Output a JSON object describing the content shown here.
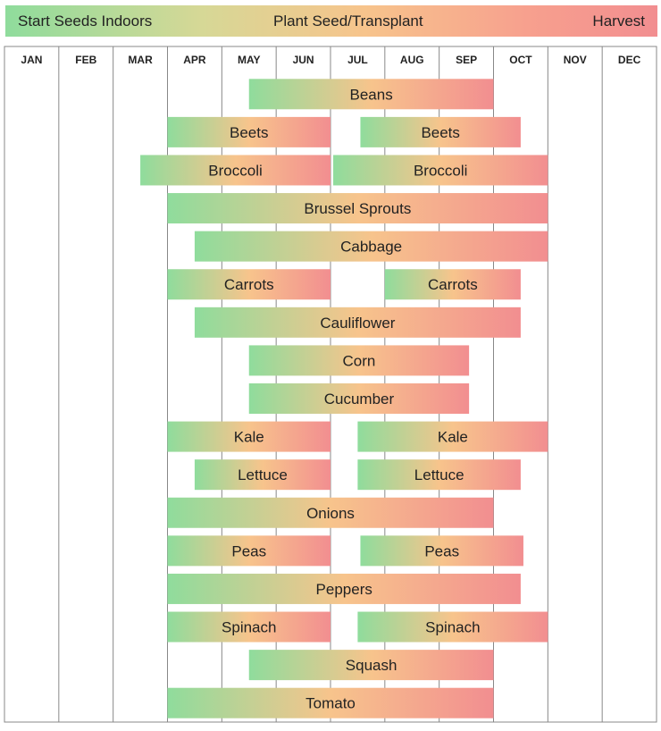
{
  "legend": {
    "start_label": "Start Seeds Indoors",
    "plant_label": "Plant Seed/Transplant",
    "harvest_label": "Harvest"
  },
  "colors": {
    "start": "#8fdc9c",
    "plant": "#f7c48c",
    "harvest": "#f28e90",
    "grid": "#888888"
  },
  "chart_data": {
    "type": "bar",
    "orientation": "horizontal-gantt",
    "x_unit": "month",
    "categories_x": [
      "JAN",
      "FEB",
      "MAR",
      "APR",
      "MAY",
      "JUN",
      "JUL",
      "AUG",
      "SEP",
      "OCT",
      "NOV",
      "DEC"
    ],
    "rows": [
      {
        "label": "Beans",
        "bars": [
          {
            "start": 4.5,
            "end": 9.0,
            "text": "Beans"
          }
        ]
      },
      {
        "label": "Beets",
        "bars": [
          {
            "start": 3.0,
            "end": 6.0,
            "text": "Beets"
          },
          {
            "start": 6.55,
            "end": 9.5,
            "text": "Beets"
          }
        ]
      },
      {
        "label": "Broccoli",
        "bars": [
          {
            "start": 2.5,
            "end": 6.0,
            "text": "Broccoli"
          },
          {
            "start": 6.05,
            "end": 10.0,
            "text": "Broccoli"
          }
        ]
      },
      {
        "label": "Brussel Sprouts",
        "bars": [
          {
            "start": 3.0,
            "end": 10.0,
            "text": "Brussel Sprouts"
          }
        ]
      },
      {
        "label": "Cabbage",
        "bars": [
          {
            "start": 3.5,
            "end": 10.0,
            "text": "Cabbage"
          }
        ]
      },
      {
        "label": "Carrots",
        "bars": [
          {
            "start": 3.0,
            "end": 6.0,
            "text": "Carrots"
          },
          {
            "start": 7.0,
            "end": 9.5,
            "text": "Carrots"
          }
        ]
      },
      {
        "label": "Cauliflower",
        "bars": [
          {
            "start": 3.5,
            "end": 9.5,
            "text": "Cauliflower"
          }
        ]
      },
      {
        "label": "Corn",
        "bars": [
          {
            "start": 4.5,
            "end": 8.55,
            "text": "Corn"
          }
        ]
      },
      {
        "label": "Cucumber",
        "bars": [
          {
            "start": 4.5,
            "end": 8.55,
            "text": "Cucumber"
          }
        ]
      },
      {
        "label": "Kale",
        "bars": [
          {
            "start": 3.0,
            "end": 6.0,
            "text": "Kale"
          },
          {
            "start": 6.5,
            "end": 10.0,
            "text": "Kale"
          }
        ]
      },
      {
        "label": "Lettuce",
        "bars": [
          {
            "start": 3.5,
            "end": 6.0,
            "text": "Lettuce"
          },
          {
            "start": 6.5,
            "end": 9.5,
            "text": "Lettuce"
          }
        ]
      },
      {
        "label": "Onions",
        "bars": [
          {
            "start": 3.0,
            "end": 9.0,
            "text": "Onions"
          }
        ]
      },
      {
        "label": "Peas",
        "bars": [
          {
            "start": 3.0,
            "end": 6.0,
            "text": "Peas"
          },
          {
            "start": 6.55,
            "end": 9.55,
            "text": "Peas"
          }
        ]
      },
      {
        "label": "Peppers",
        "bars": [
          {
            "start": 3.0,
            "end": 9.5,
            "text": "Peppers"
          }
        ]
      },
      {
        "label": "Spinach",
        "bars": [
          {
            "start": 3.0,
            "end": 6.0,
            "text": "Spinach"
          },
          {
            "start": 6.5,
            "end": 10.0,
            "text": "Spinach"
          }
        ]
      },
      {
        "label": "Squash",
        "bars": [
          {
            "start": 4.5,
            "end": 9.0,
            "text": "Squash"
          }
        ]
      },
      {
        "label": "Tomato",
        "bars": [
          {
            "start": 3.0,
            "end": 9.0,
            "text": "Tomato"
          }
        ]
      }
    ],
    "title": "",
    "xlabel": "",
    "ylabel": "",
    "grid": true,
    "legend_position": "top"
  }
}
